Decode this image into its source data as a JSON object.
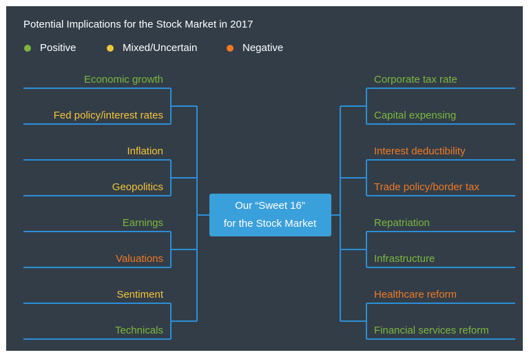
{
  "title": "Potential Implications for the Stock Market in 2017",
  "legend": [
    {
      "label": "Positive",
      "color": "#7cb83f"
    },
    {
      "label": "Mixed/Uncertain",
      "color": "#f3c53a"
    },
    {
      "label": "Negative",
      "color": "#f07a26"
    }
  ],
  "center": {
    "lines": [
      "Our “Sweet 16”",
      "for the Stock Market"
    ]
  },
  "left": [
    {
      "label": "Economic growth",
      "color": "#7cb83f"
    },
    {
      "label": "Fed policy/interest rates",
      "color": "#f3c53a"
    },
    {
      "label": "Inflation",
      "color": "#f3c53a"
    },
    {
      "label": "Geopolitics",
      "color": "#f3c53a"
    },
    {
      "label": "Earnings",
      "color": "#7cb83f"
    },
    {
      "label": "Valuations",
      "color": "#f07a26"
    },
    {
      "label": "Sentiment",
      "color": "#f3c53a"
    },
    {
      "label": "Technicals",
      "color": "#7cb83f"
    }
  ],
  "right": [
    {
      "label": "Corporate tax rate",
      "color": "#7cb83f"
    },
    {
      "label": "Capital expensing",
      "color": "#7cb83f"
    },
    {
      "label": "Interest deductibility",
      "color": "#f07a26"
    },
    {
      "label": "Trade policy/border tax",
      "color": "#f07a26"
    },
    {
      "label": "Repatriation",
      "color": "#7cb83f"
    },
    {
      "label": "Infrastructure",
      "color": "#7cb83f"
    },
    {
      "label": "Healthcare reform",
      "color": "#f07a26"
    },
    {
      "label": "Financial services reform",
      "color": "#7cb83f"
    }
  ]
}
